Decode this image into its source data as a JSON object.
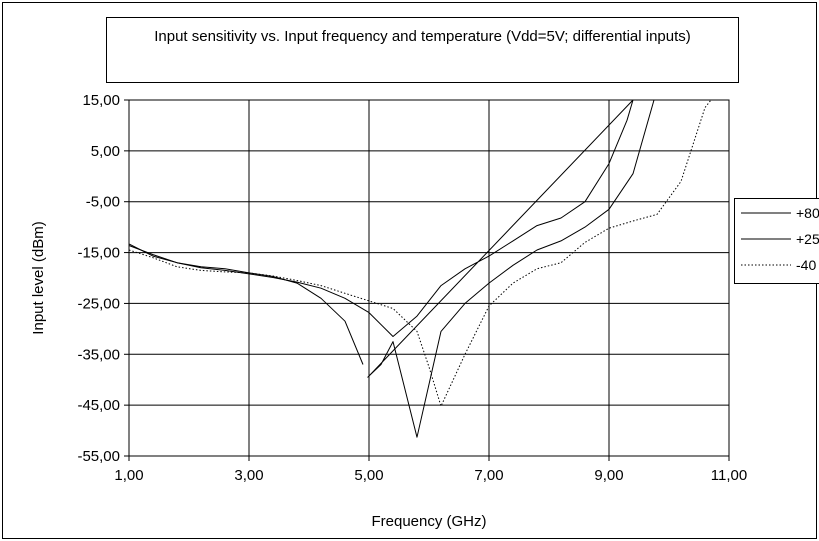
{
  "chart_data": {
    "type": "line",
    "title": "Input sensitivity vs. Input frequency and temperature (Vdd=5V; differential inputs)",
    "xlabel": "Frequency (GHz)",
    "ylabel": "Input level (dBm)",
    "xlim": [
      1,
      11
    ],
    "ylim": [
      -55,
      15
    ],
    "xticks": [
      "1,00",
      "3,00",
      "5,00",
      "7,00",
      "9,00",
      "11,00"
    ],
    "yticks": [
      "15,00",
      "5,00",
      "-5,00",
      "-15,00",
      "-25,00",
      "-35,00",
      "-45,00",
      "-55,00"
    ],
    "grid": true,
    "legend_position": "right",
    "series": [
      {
        "name": "+80",
        "style": "solid",
        "x": [
          1.0,
          1.4,
          1.8,
          2.2,
          2.6,
          3.0,
          3.4,
          3.8,
          4.2,
          4.6,
          4.9
        ],
        "y": [
          -13.3,
          -15.7,
          -17.0,
          -17.8,
          -18.2,
          -19.0,
          -19.7,
          -21.0,
          -24.0,
          -28.5,
          -37.0
        ]
      },
      {
        "name": "+25",
        "style": "solid",
        "x": [
          1.0,
          1.4,
          1.8,
          2.2,
          2.6,
          3.0,
          3.4,
          3.8,
          4.2,
          4.6,
          5.0,
          5.4,
          5.8,
          6.2,
          6.6,
          7.0,
          7.4,
          7.8,
          8.2,
          8.6,
          9.0,
          9.3,
          9.4,
          4.98,
          5.2,
          5.4,
          5.8,
          6.2,
          6.6,
          7.0,
          7.4,
          7.8,
          8.2,
          8.6,
          9.0,
          9.4,
          9.75,
          10.6
        ],
        "y": [
          -13.6,
          -15.4,
          -17.0,
          -18.0,
          -18.5,
          -19.2,
          -19.9,
          -20.8,
          -22.0,
          -24.0,
          -26.8,
          -31.5,
          -27.5,
          -21.5,
          -18.2,
          -15.7,
          -12.7,
          -9.7,
          -8.2,
          -5.0,
          2.5,
          11.0,
          15.0,
          -39.5,
          -37.0,
          -32.5,
          -51.3,
          -30.5,
          -25.0,
          -21.0,
          -17.5,
          -14.5,
          -12.7,
          -10.0,
          -6.5,
          0.5,
          15.0,
          15.0
        ]
      },
      {
        "name": "-40",
        "style": "dotted",
        "x": [
          1.0,
          1.4,
          1.8,
          2.2,
          2.6,
          3.0,
          3.4,
          3.8,
          4.2,
          4.6,
          5.0,
          5.4,
          5.8,
          6.0,
          6.2,
          6.6,
          7.0,
          7.4,
          7.8,
          8.2,
          8.6,
          9.0,
          9.4,
          9.8,
          10.2,
          10.6,
          10.7
        ],
        "y": [
          -14.5,
          -16.0,
          -17.8,
          -18.5,
          -18.8,
          -19.0,
          -19.6,
          -20.5,
          -21.5,
          -23.0,
          -24.5,
          -26.0,
          -30.5,
          -37.5,
          -45.2,
          -35.0,
          -25.5,
          -21.0,
          -18.2,
          -17.0,
          -13.0,
          -10.2,
          -8.8,
          -7.5,
          -1.0,
          13.5,
          15.0
        ]
      }
    ]
  }
}
